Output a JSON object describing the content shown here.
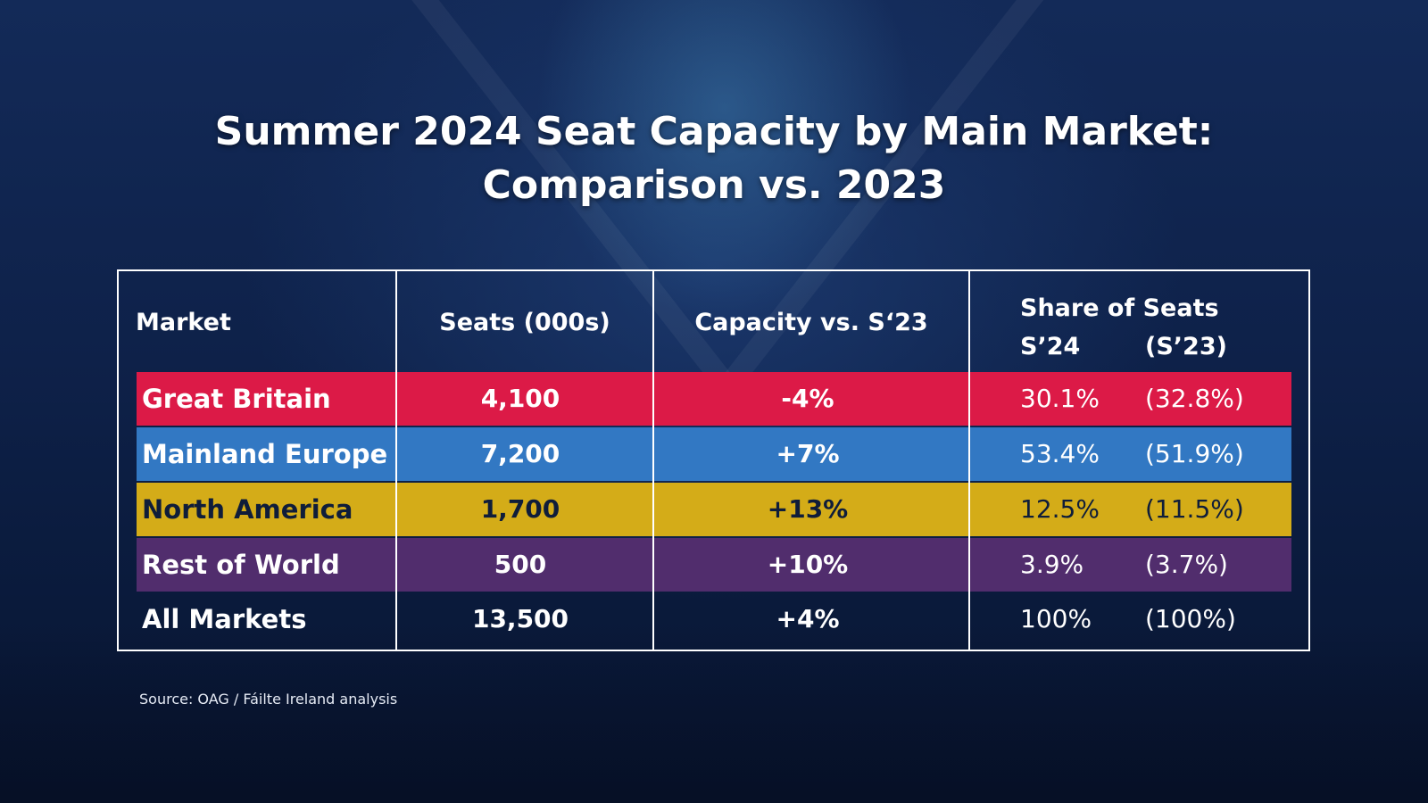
{
  "title": {
    "line1": "Summer 2024 Seat Capacity by Main Market:",
    "line2": "Comparison vs. 2023"
  },
  "chart_data": {
    "type": "table",
    "columns": {
      "market": "Market",
      "seats": "Seats (000s)",
      "capacity": "Capacity vs. S‘23",
      "share": "Share of Seats",
      "share_s24": "S’24",
      "share_s23": "(S’23)"
    },
    "rows": [
      {
        "market": "Great Britain",
        "seats": "4,100",
        "capacity": "-4%",
        "share_s24": "30.1%",
        "share_s23": "(32.8%)",
        "color": "#dc1a47",
        "text_color": "#ffffff"
      },
      {
        "market": "Mainland Europe",
        "seats": "7,200",
        "capacity": "+7%",
        "share_s24": "53.4%",
        "share_s23": "(51.9%)",
        "color": "#3278c3",
        "text_color": "#ffffff"
      },
      {
        "market": "North America",
        "seats": "1,700",
        "capacity": "+13%",
        "share_s24": "12.5%",
        "share_s23": "(11.5%)",
        "color": "#d4ac18",
        "text_color": "#0f1d3a"
      },
      {
        "market": "Rest of World",
        "seats": "500",
        "capacity": "+10%",
        "share_s24": "3.9%",
        "share_s23": "(3.7%)",
        "color": "#512d6d",
        "text_color": "#ffffff"
      },
      {
        "market": "All Markets",
        "seats": "13,500",
        "capacity": "+4%",
        "share_s24": "100%",
        "share_s23": "(100%)",
        "color": "",
        "text_color": "#ffffff"
      }
    ]
  },
  "source": "Source: OAG / Fáilte Ireland analysis"
}
